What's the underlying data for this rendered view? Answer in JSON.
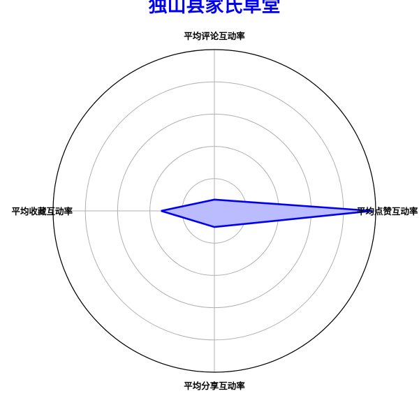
{
  "colors": {
    "title": "#0000ee",
    "series_line": "#0000ee",
    "series_fill": "#bbbbff",
    "grid": "#b0b0b0",
    "frame": "#000000",
    "background": "#ffffff"
  },
  "chart_data": {
    "type": "radar",
    "title": "独山县家氏草堂",
    "axes": [
      "平均点赞互动率",
      "平均评论互动率",
      "平均收藏互动率",
      "平均分享互动率"
    ],
    "rlim": [
      0,
      1
    ],
    "grid": true,
    "grid_rings": 5,
    "series": [
      {
        "values": [
          0.98,
          0.07,
          0.33,
          0.1
        ]
      }
    ]
  }
}
